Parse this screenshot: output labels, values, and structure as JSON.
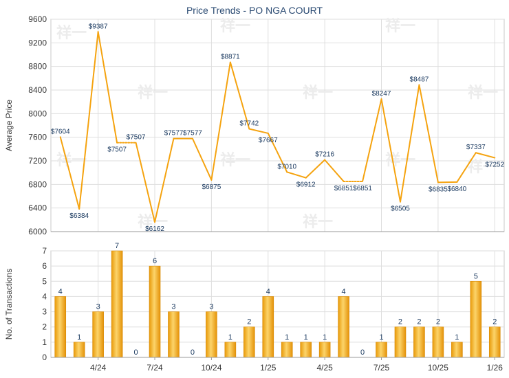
{
  "chart_data": [
    {
      "type": "line",
      "title": "Price Trends - PO NGA COURT",
      "ylabel": "Average Price",
      "ylim": [
        6000,
        9600
      ],
      "yticks": [
        6000,
        6400,
        6800,
        7200,
        7600,
        8000,
        8400,
        8800,
        9200,
        9600
      ],
      "value_prefix": "$",
      "values": [
        7604,
        6384,
        9387,
        7507,
        7507,
        6162,
        7577,
        7577,
        6875,
        8871,
        7742,
        7667,
        7010,
        6912,
        7216,
        6851,
        6851,
        8247,
        6505,
        8487,
        6835,
        6840,
        7337,
        7252
      ],
      "dotted_segments": [
        [
          3,
          4
        ],
        [
          15,
          16
        ]
      ],
      "line_color": "#f5a30f"
    },
    {
      "type": "bar",
      "ylabel": "No. of Transactions",
      "ylim": [
        0,
        7
      ],
      "yticks": [
        0,
        1,
        2,
        3,
        4,
        5,
        6,
        7
      ],
      "values": [
        4,
        1,
        3,
        7,
        0,
        6,
        3,
        0,
        3,
        1,
        2,
        4,
        1,
        1,
        1,
        4,
        0,
        1,
        2,
        2,
        2,
        1,
        5,
        2
      ],
      "bar_color": "#f5a30f"
    }
  ],
  "x_axis": {
    "ticks": [
      {
        "index": 2,
        "label": "4/24"
      },
      {
        "index": 5,
        "label": "7/24"
      },
      {
        "index": 8,
        "label": "10/24"
      },
      {
        "index": 11,
        "label": "1/25"
      },
      {
        "index": 14,
        "label": "4/25"
      },
      {
        "index": 17,
        "label": "7/25"
      },
      {
        "index": 20,
        "label": "10/25"
      },
      {
        "index": 23,
        "label": "1/26"
      }
    ]
  },
  "watermark": "祥一"
}
